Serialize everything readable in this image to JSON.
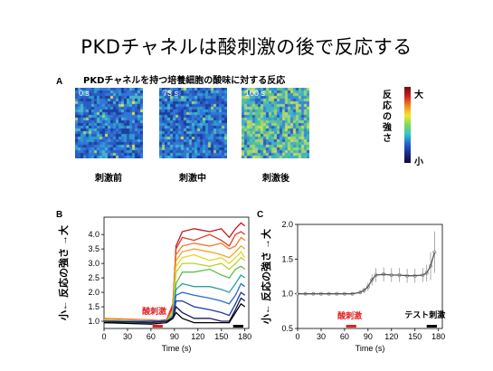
{
  "slide": {
    "title": "PKDチャネルは酸刺激の後で反応する"
  },
  "panel_a": {
    "letter": "A",
    "subtitle": "PKDチャネルを持つ培養細胞の酸味に対する反応",
    "images": [
      {
        "time": "0 s",
        "caption": "刺激前"
      },
      {
        "time": "73 s",
        "caption": "刺激中"
      },
      {
        "time": "100 s",
        "caption": "刺激後"
      }
    ],
    "colorbar": {
      "label": "反応の強さ",
      "high": "大",
      "low": "小",
      "colors": [
        "#6a0f10",
        "#d21f1f",
        "#f18a1f",
        "#f5e72b",
        "#7ed957",
        "#2fc6c9",
        "#2464c9",
        "#1b2a8c",
        "#0a0a2e"
      ]
    }
  },
  "panel_b": {
    "letter": "B",
    "ylabel": "小← 反応の強さ →大",
    "xlabel": "Time (s)",
    "stimulus_label": "酸刺激",
    "stimulus_color": "#e02020"
  },
  "panel_c": {
    "letter": "C",
    "ylabel": "小← 反応の強さ →大",
    "xlabel": "Time (s)",
    "stimulus_label": "酸刺激",
    "test_label": "テスト刺激",
    "stimulus_color": "#e02020"
  },
  "chart_data": [
    {
      "type": "line",
      "xlabel": "Time (s)",
      "ylabel": "小← 反応の強さ →大",
      "xlim": [
        0,
        185
      ],
      "ylim": [
        0.75,
        4.6
      ],
      "xticks": [
        0,
        30,
        60,
        90,
        120,
        150,
        180
      ],
      "yticks": [
        1.0,
        1.5,
        2.0,
        2.5,
        3.0,
        3.5,
        4.0
      ],
      "stimulus": {
        "label": "酸刺激",
        "start": 62,
        "end": 75
      },
      "test_stimulus": {
        "start": 165,
        "end": 178
      },
      "series": [
        {
          "color": "#c01818",
          "x": [
            0,
            60,
            80,
            88,
            92,
            100,
            115,
            135,
            150,
            160,
            168,
            175,
            180
          ],
          "y": [
            1.05,
            1.0,
            1.0,
            1.5,
            3.6,
            4.1,
            4.2,
            4.1,
            4.2,
            3.9,
            4.2,
            4.4,
            4.3
          ]
        },
        {
          "color": "#e03a2a",
          "x": [
            0,
            60,
            80,
            88,
            92,
            100,
            115,
            135,
            150,
            160,
            168,
            175,
            180
          ],
          "y": [
            1.0,
            1.0,
            1.05,
            1.6,
            3.5,
            3.9,
            3.8,
            4.0,
            3.8,
            3.6,
            4.0,
            4.1,
            4.0
          ]
        },
        {
          "color": "#f07a2c",
          "x": [
            0,
            60,
            80,
            88,
            92,
            100,
            115,
            135,
            150,
            160,
            168,
            175,
            180
          ],
          "y": [
            1.1,
            1.05,
            1.0,
            1.4,
            3.3,
            3.6,
            3.7,
            3.6,
            3.7,
            3.5,
            3.6,
            3.9,
            3.8
          ]
        },
        {
          "color": "#f4a52c",
          "x": [
            0,
            60,
            80,
            88,
            92,
            100,
            115,
            135,
            150,
            160,
            168,
            175,
            180
          ],
          "y": [
            1.0,
            0.95,
            1.0,
            1.4,
            3.1,
            3.4,
            3.5,
            3.4,
            3.3,
            3.2,
            3.4,
            3.6,
            3.5
          ]
        },
        {
          "color": "#e8d42a",
          "x": [
            0,
            60,
            80,
            88,
            92,
            100,
            115,
            135,
            150,
            160,
            168,
            175,
            180
          ],
          "y": [
            1.0,
            1.0,
            1.0,
            1.3,
            2.9,
            3.2,
            3.3,
            3.1,
            3.2,
            3.0,
            3.2,
            3.4,
            3.2
          ]
        },
        {
          "color": "#b8d430",
          "x": [
            0,
            60,
            80,
            88,
            92,
            100,
            115,
            135,
            150,
            160,
            168,
            175,
            180
          ],
          "y": [
            1.05,
            1.0,
            1.0,
            1.3,
            2.7,
            3.0,
            3.0,
            2.9,
            3.0,
            2.8,
            3.0,
            3.2,
            3.1
          ]
        },
        {
          "color": "#5cc04a",
          "x": [
            0,
            60,
            80,
            88,
            92,
            100,
            115,
            135,
            150,
            160,
            168,
            175,
            180
          ],
          "y": [
            0.95,
            0.95,
            1.0,
            1.2,
            2.3,
            2.7,
            2.7,
            2.8,
            2.6,
            2.5,
            2.8,
            2.9,
            2.8
          ]
        },
        {
          "color": "#2ea09a",
          "x": [
            0,
            60,
            80,
            88,
            92,
            100,
            115,
            135,
            150,
            160,
            168,
            175,
            180
          ],
          "y": [
            1.0,
            1.0,
            1.0,
            1.2,
            2.1,
            2.3,
            2.2,
            2.2,
            2.1,
            2.0,
            2.3,
            2.6,
            2.5
          ]
        },
        {
          "color": "#2a6acc",
          "x": [
            0,
            60,
            80,
            88,
            92,
            100,
            115,
            135,
            150,
            160,
            168,
            175,
            180
          ],
          "y": [
            1.0,
            1.0,
            1.0,
            1.15,
            1.9,
            2.0,
            1.9,
            1.8,
            1.7,
            1.6,
            1.9,
            2.3,
            2.2
          ]
        },
        {
          "color": "#1a3aa8",
          "x": [
            0,
            60,
            80,
            88,
            92,
            100,
            115,
            135,
            150,
            160,
            168,
            175,
            180
          ],
          "y": [
            0.95,
            1.0,
            1.0,
            1.1,
            1.7,
            1.7,
            1.5,
            1.4,
            1.3,
            1.2,
            1.6,
            2.0,
            1.9
          ]
        },
        {
          "color": "#1a1a5a",
          "x": [
            0,
            60,
            80,
            88,
            92,
            100,
            115,
            135,
            150,
            160,
            168,
            175,
            180
          ],
          "y": [
            1.0,
            0.95,
            1.0,
            1.1,
            1.5,
            1.3,
            1.1,
            1.1,
            1.0,
            1.0,
            1.4,
            1.8,
            1.7
          ]
        },
        {
          "color": "#000000",
          "x": [
            0,
            60,
            80,
            88,
            92,
            100,
            115,
            135,
            150,
            160,
            168,
            175,
            180
          ],
          "y": [
            0.95,
            0.9,
            0.95,
            1.1,
            1.3,
            1.1,
            0.95,
            0.95,
            0.95,
            0.95,
            1.3,
            1.6,
            1.5
          ]
        }
      ]
    },
    {
      "type": "line",
      "xlabel": "Time (s)",
      "ylabel": "小← 反応の強さ →大",
      "xlim": [
        0,
        185
      ],
      "ylim": [
        0.5,
        2.0
      ],
      "xticks": [
        0,
        30,
        60,
        90,
        120,
        150,
        180
      ],
      "yticks": [
        0.5,
        1.0,
        1.5,
        2.0
      ],
      "stimulus": {
        "label": "酸刺激",
        "start": 62,
        "end": 75
      },
      "test_stimulus": {
        "label": "テスト刺激",
        "start": 165,
        "end": 178
      },
      "series": [
        {
          "color": "#555555",
          "x": [
            0,
            10,
            20,
            30,
            40,
            50,
            60,
            70,
            80,
            85,
            90,
            95,
            100,
            110,
            120,
            130,
            140,
            150,
            160,
            165,
            170,
            175
          ],
          "y": [
            1.0,
            1.0,
            1.0,
            1.0,
            1.0,
            1.0,
            1.0,
            1.0,
            1.02,
            1.05,
            1.1,
            1.2,
            1.27,
            1.28,
            1.27,
            1.27,
            1.26,
            1.26,
            1.27,
            1.3,
            1.4,
            1.6
          ],
          "err": [
            0.02,
            0.02,
            0.02,
            0.02,
            0.02,
            0.02,
            0.02,
            0.02,
            0.03,
            0.04,
            0.06,
            0.08,
            0.1,
            0.1,
            0.1,
            0.1,
            0.1,
            0.1,
            0.1,
            0.12,
            0.2,
            0.3
          ]
        }
      ]
    }
  ]
}
